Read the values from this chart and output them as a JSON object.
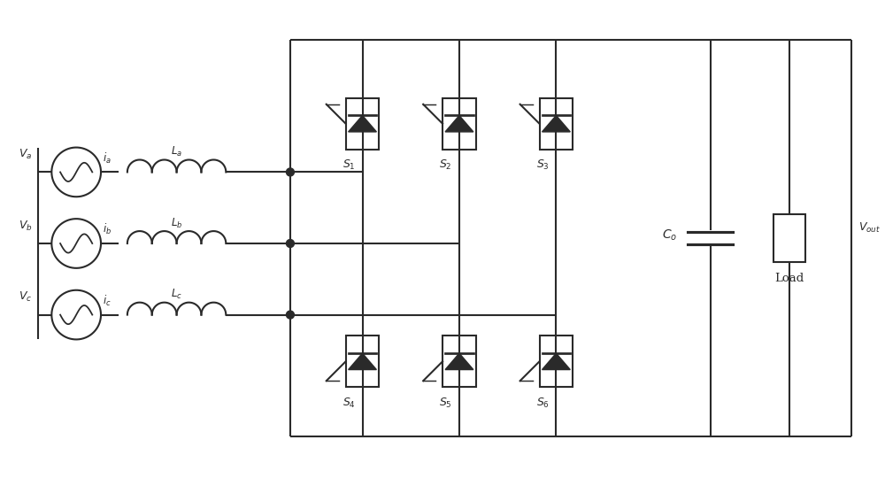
{
  "bg_color": "#ffffff",
  "line_color": "#2a2a2a",
  "lw": 1.5,
  "fig_w": 10.0,
  "fig_h": 5.49
}
